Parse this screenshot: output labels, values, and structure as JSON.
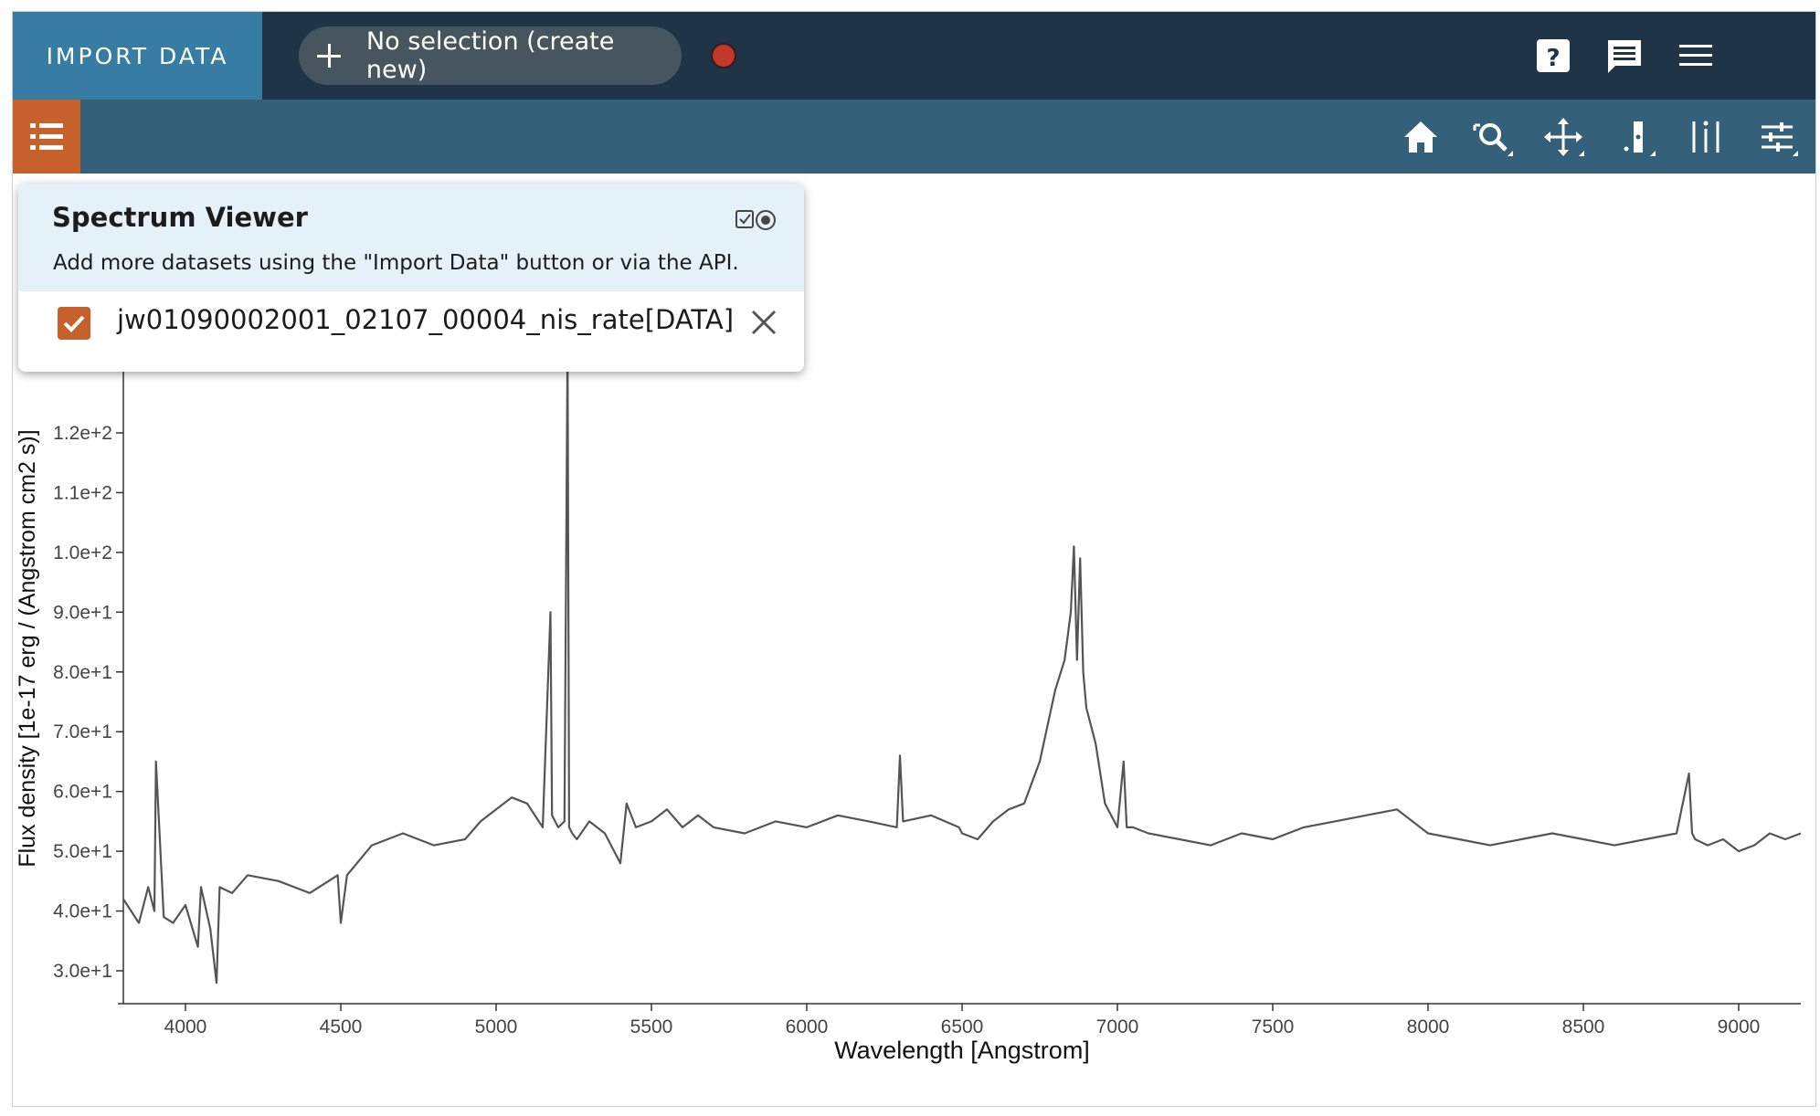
{
  "app": {
    "import_label": "IMPORT DATA",
    "selection_label": "No selection (create new)",
    "status_color": "#c0392b",
    "icons": [
      "help-icon",
      "feedback-icon",
      "menu-icon"
    ]
  },
  "toolbar": {
    "tools": [
      "home-icon",
      "zoom-icon",
      "pan-icon",
      "spectral-region-icon",
      "line-list-icon",
      "plot-options-icon"
    ],
    "accent": "#c6612b",
    "bar_color": "#346079"
  },
  "popup": {
    "title": "Spectrum Viewer",
    "hint": "Add more datasets using the \"Import Data\" button or via the API.",
    "layers": [
      {
        "label": "jw01090002001_02107_00004_nis_rate[DATA]",
        "checked": true
      }
    ]
  },
  "chart_data": {
    "type": "line",
    "xlabel": "Wavelength [Angstrom]",
    "ylabel": "Flux density [1e-17 erg / (Angstrom cm2 s)]",
    "xlim": [
      3800,
      9200
    ],
    "ylim": [
      24.5,
      142
    ],
    "xticks": [
      4000,
      4500,
      5000,
      5500,
      6000,
      6500,
      7000,
      7500,
      8000,
      8500,
      9000
    ],
    "xtick_labels": [
      "4000",
      "4500",
      "5000",
      "5500",
      "6000",
      "6500",
      "7000",
      "7500",
      "8000",
      "8500",
      "9000"
    ],
    "yticks": [
      30,
      40,
      50,
      60,
      70,
      80,
      90,
      100,
      110,
      120
    ],
    "ytick_labels": [
      "3.0e+1",
      "4.0e+1",
      "5.0e+1",
      "6.0e+1",
      "7.0e+1",
      "8.0e+1",
      "9.0e+1",
      "1.0e+2",
      "1.1e+2",
      "1.2e+2"
    ],
    "grid": false,
    "series": [
      {
        "color": "#555555",
        "x": [
          3800,
          3850,
          3880,
          3900,
          3905,
          3930,
          3960,
          4000,
          4040,
          4050,
          4080,
          4100,
          4110,
          4150,
          4200,
          4300,
          4400,
          4490,
          4500,
          4520,
          4600,
          4700,
          4800,
          4900,
          4950,
          5000,
          5050,
          5100,
          5150,
          5175,
          5180,
          5190,
          5200,
          5220,
          5230,
          5235,
          5245,
          5260,
          5300,
          5350,
          5400,
          5420,
          5450,
          5500,
          5550,
          5600,
          5650,
          5700,
          5800,
          5900,
          6000,
          6100,
          6200,
          6290,
          6300,
          6310,
          6400,
          6490,
          6500,
          6550,
          6600,
          6650,
          6700,
          6750,
          6800,
          6830,
          6850,
          6860,
          6870,
          6880,
          6890,
          6900,
          6930,
          6960,
          7000,
          7020,
          7030,
          7050,
          7100,
          7200,
          7300,
          7400,
          7500,
          7600,
          7700,
          7800,
          7900,
          8000,
          8100,
          8200,
          8300,
          8400,
          8500,
          8600,
          8700,
          8800,
          8840,
          8850,
          8860,
          8900,
          8950,
          9000,
          9050,
          9100,
          9150,
          9200
        ],
        "y": [
          42,
          38,
          44,
          40,
          65,
          39,
          38,
          41,
          34,
          44,
          37,
          28,
          44,
          43,
          46,
          45,
          43,
          46,
          38,
          46,
          51,
          53,
          51,
          52,
          55,
          57,
          59,
          58,
          54,
          90,
          56,
          55,
          54,
          55,
          135,
          54,
          53,
          52,
          55,
          53,
          48,
          58,
          54,
          55,
          57,
          54,
          56,
          54,
          53,
          55,
          54,
          56,
          55,
          54,
          66,
          55,
          56,
          54,
          53,
          52,
          55,
          57,
          58,
          65,
          77,
          82,
          90,
          101,
          82,
          99,
          80,
          74,
          68,
          58,
          54,
          65,
          54,
          54,
          53,
          52,
          51,
          53,
          52,
          54,
          55,
          56,
          57,
          53,
          52,
          51,
          52,
          53,
          52,
          51,
          52,
          53,
          63,
          53,
          52,
          51,
          52,
          50,
          51,
          53,
          52,
          53
        ]
      }
    ]
  }
}
